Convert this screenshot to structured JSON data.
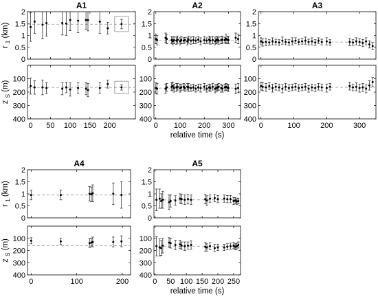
{
  "chart_data": {
    "type": "scatter",
    "marker": "dot with vertical error bars",
    "error_bar_color": "#333333",
    "reference_line_color": "#a8a8a8",
    "xlabel": "relative time (s)",
    "r1_label": "r",
    "r1_label_sub": "1",
    "r1_label_unit": "(km)",
    "zs_label": "z",
    "zs_label_sub": "S",
    "zs_label_unit": "(m)",
    "r1_ylim": [
      0,
      2
    ],
    "r1_yticks": [
      "0",
      "0.5",
      "1",
      "1.5",
      "2"
    ],
    "zs_ylim": [
      400,
      0
    ],
    "zs_yticks": [
      "100",
      "200",
      "300",
      "400"
    ],
    "panels": [
      {
        "title": "A1",
        "xlim": [
          -8,
          265
        ],
        "xticks": [
          "0",
          "50",
          "100",
          "150",
          "200"
        ],
        "show_xlabel": false,
        "r1_ref": 1.47,
        "zs_ref": 165,
        "r1_points": [
          [
            0,
            1.35,
            0.6
          ],
          [
            10,
            1.58,
            0.5
          ],
          [
            30,
            1.45,
            0.6
          ],
          [
            40,
            1.52,
            0.55
          ],
          [
            80,
            1.52,
            0.5
          ],
          [
            90,
            1.5,
            0.5
          ],
          [
            100,
            1.65,
            0.45
          ],
          [
            120,
            1.62,
            0.5
          ],
          [
            140,
            1.65,
            0.4
          ],
          [
            145,
            1.64,
            0.45
          ],
          [
            175,
            1.58,
            0.5
          ],
          [
            195,
            1.3,
            0.25
          ],
          [
            230,
            1.48,
            0.2
          ]
        ],
        "zs_points": [
          [
            0,
            155,
            60
          ],
          [
            10,
            165,
            50
          ],
          [
            30,
            165,
            55
          ],
          [
            40,
            170,
            40
          ],
          [
            80,
            175,
            45
          ],
          [
            90,
            165,
            40
          ],
          [
            100,
            180,
            50
          ],
          [
            120,
            170,
            40
          ],
          [
            140,
            175,
            45
          ],
          [
            145,
            185,
            50
          ],
          [
            175,
            170,
            40
          ],
          [
            195,
            140,
            30
          ],
          [
            230,
            165,
            20
          ]
        ],
        "r1_inset": true,
        "zs_inset": true
      },
      {
        "title": "A2",
        "xlim": [
          -8,
          350
        ],
        "xticks": [
          "0",
          "100",
          "200",
          "300"
        ],
        "show_xlabel": true,
        "r1_ref": 0.8,
        "zs_ref": 170,
        "r1_points": [
          [
            0,
            0.85,
            0.2
          ],
          [
            5,
            0.8,
            0.2
          ],
          [
            40,
            0.9,
            0.2
          ],
          [
            45,
            0.85,
            0.2
          ],
          [
            65,
            0.8,
            0.15
          ],
          [
            70,
            0.75,
            0.15
          ],
          [
            75,
            0.8,
            0.15
          ],
          [
            85,
            0.78,
            0.15
          ],
          [
            90,
            0.82,
            0.15
          ],
          [
            100,
            0.75,
            0.15
          ],
          [
            105,
            0.8,
            0.15
          ],
          [
            115,
            0.78,
            0.12
          ],
          [
            120,
            0.8,
            0.12
          ],
          [
            130,
            0.75,
            0.15
          ],
          [
            135,
            0.82,
            0.15
          ],
          [
            145,
            0.78,
            0.15
          ],
          [
            155,
            0.8,
            0.15
          ],
          [
            165,
            0.78,
            0.12
          ],
          [
            175,
            0.82,
            0.12
          ],
          [
            185,
            0.75,
            0.15
          ],
          [
            200,
            0.8,
            0.15
          ],
          [
            210,
            0.78,
            0.12
          ],
          [
            220,
            0.82,
            0.15
          ],
          [
            225,
            0.78,
            0.15
          ],
          [
            235,
            0.8,
            0.15
          ],
          [
            245,
            0.75,
            0.15
          ],
          [
            250,
            0.8,
            0.15
          ],
          [
            255,
            0.82,
            0.12
          ],
          [
            260,
            0.78,
            0.15
          ],
          [
            270,
            0.8,
            0.15
          ],
          [
            275,
            0.82,
            0.15
          ],
          [
            285,
            0.8,
            0.12
          ],
          [
            290,
            0.85,
            0.2
          ],
          [
            295,
            0.82,
            0.15
          ],
          [
            300,
            0.8,
            0.15
          ],
          [
            330,
            0.9,
            0.2
          ],
          [
            340,
            0.85,
            0.2
          ]
        ],
        "zs_points": [
          [
            0,
            170,
            40
          ],
          [
            5,
            175,
            40
          ],
          [
            40,
            175,
            35
          ],
          [
            45,
            165,
            30
          ],
          [
            65,
            160,
            30
          ],
          [
            70,
            155,
            30
          ],
          [
            75,
            170,
            30
          ],
          [
            85,
            165,
            30
          ],
          [
            90,
            160,
            25
          ],
          [
            100,
            170,
            30
          ],
          [
            105,
            165,
            25
          ],
          [
            115,
            160,
            25
          ],
          [
            120,
            170,
            25
          ],
          [
            130,
            160,
            25
          ],
          [
            135,
            165,
            30
          ],
          [
            145,
            170,
            25
          ],
          [
            155,
            165,
            25
          ],
          [
            165,
            175,
            25
          ],
          [
            175,
            165,
            25
          ],
          [
            185,
            170,
            30
          ],
          [
            200,
            160,
            25
          ],
          [
            210,
            175,
            25
          ],
          [
            220,
            165,
            25
          ],
          [
            225,
            170,
            25
          ],
          [
            235,
            160,
            25
          ],
          [
            245,
            175,
            30
          ],
          [
            250,
            170,
            25
          ],
          [
            255,
            165,
            25
          ],
          [
            260,
            160,
            25
          ],
          [
            270,
            170,
            30
          ],
          [
            275,
            175,
            25
          ],
          [
            285,
            165,
            25
          ],
          [
            290,
            160,
            25
          ],
          [
            295,
            165,
            25
          ],
          [
            300,
            170,
            25
          ],
          [
            330,
            175,
            35
          ],
          [
            340,
            170,
            35
          ]
        ]
      },
      {
        "title": "A3",
        "xlim": [
          -8,
          350
        ],
        "xticks": [
          "0",
          "100",
          "200",
          "300"
        ],
        "show_xlabel": false,
        "r1_ref": 0.72,
        "zs_ref": 165,
        "r1_points": [
          [
            0,
            0.75,
            0.15
          ],
          [
            5,
            0.7,
            0.15
          ],
          [
            15,
            0.72,
            0.15
          ],
          [
            25,
            0.7,
            0.12
          ],
          [
            35,
            0.75,
            0.15
          ],
          [
            45,
            0.72,
            0.12
          ],
          [
            55,
            0.7,
            0.12
          ],
          [
            65,
            0.78,
            0.15
          ],
          [
            75,
            0.72,
            0.12
          ],
          [
            85,
            0.7,
            0.12
          ],
          [
            95,
            0.75,
            0.15
          ],
          [
            105,
            0.78,
            0.12
          ],
          [
            115,
            0.72,
            0.12
          ],
          [
            125,
            0.75,
            0.12
          ],
          [
            135,
            0.78,
            0.15
          ],
          [
            145,
            0.72,
            0.12
          ],
          [
            155,
            0.75,
            0.15
          ],
          [
            165,
            0.7,
            0.12
          ],
          [
            175,
            0.78,
            0.12
          ],
          [
            185,
            0.72,
            0.12
          ],
          [
            200,
            0.75,
            0.15
          ],
          [
            210,
            0.7,
            0.12
          ],
          [
            270,
            0.72,
            0.15
          ],
          [
            280,
            0.7,
            0.12
          ],
          [
            290,
            0.75,
            0.15
          ],
          [
            300,
            0.72,
            0.15
          ],
          [
            310,
            0.68,
            0.15
          ],
          [
            320,
            0.75,
            0.15
          ],
          [
            330,
            0.62,
            0.15
          ],
          [
            340,
            0.55,
            0.15
          ]
        ],
        "zs_points": [
          [
            0,
            155,
            30
          ],
          [
            5,
            160,
            30
          ],
          [
            15,
            165,
            30
          ],
          [
            25,
            155,
            25
          ],
          [
            35,
            170,
            30
          ],
          [
            45,
            160,
            25
          ],
          [
            55,
            165,
            25
          ],
          [
            65,
            175,
            30
          ],
          [
            75,
            160,
            25
          ],
          [
            85,
            170,
            25
          ],
          [
            95,
            165,
            25
          ],
          [
            105,
            160,
            25
          ],
          [
            115,
            170,
            25
          ],
          [
            125,
            165,
            25
          ],
          [
            135,
            160,
            25
          ],
          [
            145,
            175,
            25
          ],
          [
            155,
            165,
            25
          ],
          [
            165,
            170,
            25
          ],
          [
            175,
            160,
            25
          ],
          [
            185,
            165,
            25
          ],
          [
            200,
            170,
            30
          ],
          [
            210,
            160,
            25
          ],
          [
            270,
            155,
            30
          ],
          [
            280,
            165,
            25
          ],
          [
            290,
            160,
            30
          ],
          [
            300,
            170,
            30
          ],
          [
            310,
            165,
            30
          ],
          [
            320,
            175,
            30
          ],
          [
            330,
            150,
            35
          ],
          [
            340,
            125,
            35
          ]
        ]
      },
      {
        "title": "A4",
        "xlim": [
          -8,
          218
        ],
        "xticks": [
          "0",
          "100",
          "200"
        ],
        "show_xlabel": false,
        "r1_ref": 0.95,
        "zs_ref": 160,
        "r1_points": [
          [
            0,
            0.95,
            0.2
          ],
          [
            65,
            0.95,
            0.2
          ],
          [
            128,
            1.0,
            0.3
          ],
          [
            132,
            0.98,
            0.3
          ],
          [
            135,
            1.02,
            0.35
          ],
          [
            180,
            1.0,
            0.45
          ],
          [
            198,
            0.95,
            0.55
          ]
        ],
        "zs_points": [
          [
            0,
            120,
            25
          ],
          [
            65,
            125,
            25
          ],
          [
            128,
            140,
            35
          ],
          [
            132,
            135,
            35
          ],
          [
            135,
            130,
            40
          ],
          [
            180,
            130,
            40
          ],
          [
            198,
            125,
            45
          ]
        ]
      },
      {
        "title": "A5",
        "xlim": [
          -3,
          272
        ],
        "xticks": [
          "0",
          "50",
          "100",
          "150",
          "200",
          "250"
        ],
        "show_xlabel": true,
        "r1_ref": 0.75,
        "zs_ref": 165,
        "r1_points": [
          [
            5,
            0.75,
            0.45
          ],
          [
            15,
            0.8,
            0.4
          ],
          [
            20,
            0.7,
            0.3
          ],
          [
            25,
            0.75,
            0.35
          ],
          [
            45,
            0.65,
            0.3
          ],
          [
            50,
            0.7,
            0.25
          ],
          [
            65,
            0.72,
            0.2
          ],
          [
            80,
            0.8,
            0.2
          ],
          [
            85,
            0.78,
            0.2
          ],
          [
            95,
            0.75,
            0.2
          ],
          [
            105,
            0.78,
            0.2
          ],
          [
            115,
            0.75,
            0.2
          ],
          [
            160,
            0.78,
            0.2
          ],
          [
            165,
            0.72,
            0.2
          ],
          [
            175,
            0.8,
            0.15
          ],
          [
            190,
            0.82,
            0.15
          ],
          [
            200,
            0.78,
            0.15
          ],
          [
            220,
            0.8,
            0.15
          ],
          [
            230,
            0.78,
            0.15
          ],
          [
            240,
            0.78,
            0.15
          ],
          [
            250,
            0.7,
            0.15
          ],
          [
            255,
            0.72,
            0.12
          ],
          [
            260,
            0.68,
            0.12
          ],
          [
            265,
            0.7,
            0.12
          ]
        ],
        "zs_points": [
          [
            5,
            165,
            80
          ],
          [
            15,
            175,
            70
          ],
          [
            20,
            180,
            60
          ],
          [
            25,
            160,
            60
          ],
          [
            45,
            135,
            40
          ],
          [
            50,
            140,
            40
          ],
          [
            65,
            155,
            40
          ],
          [
            80,
            150,
            35
          ],
          [
            85,
            160,
            30
          ],
          [
            95,
            165,
            35
          ],
          [
            105,
            160,
            30
          ],
          [
            115,
            155,
            35
          ],
          [
            160,
            170,
            35
          ],
          [
            165,
            175,
            30
          ],
          [
            175,
            165,
            30
          ],
          [
            190,
            180,
            30
          ],
          [
            200,
            175,
            25
          ],
          [
            220,
            175,
            25
          ],
          [
            230,
            170,
            25
          ],
          [
            240,
            165,
            25
          ],
          [
            250,
            160,
            25
          ],
          [
            255,
            170,
            25
          ],
          [
            260,
            165,
            25
          ],
          [
            265,
            155,
            25
          ]
        ]
      }
    ]
  }
}
